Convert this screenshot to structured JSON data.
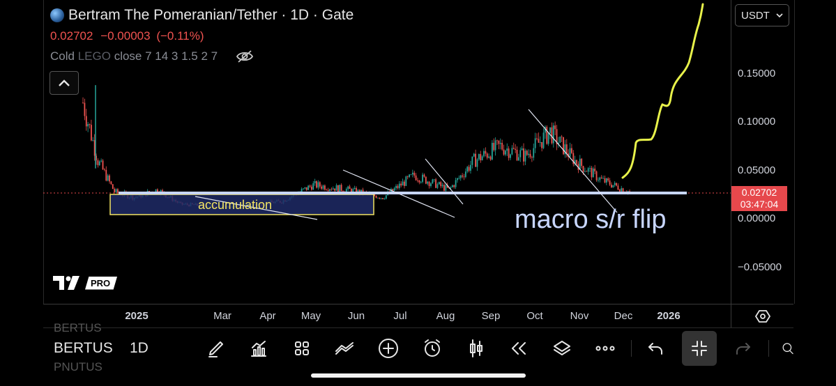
{
  "header": {
    "title": "Bertram The Pomeranian/Tether · 1D · Gate",
    "last_price": "0.02702",
    "change": "−0.00003",
    "change_pct": "(−0.11%)",
    "indicator_label": "Cold",
    "indicator_name": "LEGO",
    "indicator_params": "close 7 14 3 1.5 2 7",
    "coin_icon": "coin-icon",
    "hide_icon": "eye-off-icon",
    "collapse_icon": "chevron-up-icon"
  },
  "currency_select": {
    "value": "USDT",
    "icon": "chevron-down-icon"
  },
  "price_axis": {
    "ticks": [
      "0.15000",
      "0.10000",
      "0.05000",
      "0.00000",
      "−0.05000"
    ],
    "current_price": "0.02702",
    "countdown": "03:47:04",
    "tag_color": "#e6484c"
  },
  "time_axis": {
    "ticks": [
      "2025",
      "Mar",
      "Apr",
      "May",
      "Jun",
      "Jul",
      "Aug",
      "Sep",
      "Oct",
      "Nov",
      "Dec",
      "2026"
    ],
    "settings_icon": "hexagon-settings-icon"
  },
  "annotations": {
    "box_label": "accumulation",
    "flip_label": "macro s/r flip"
  },
  "watermark": {
    "logo": "tradingview-logo",
    "badge": "PRO"
  },
  "bottom_toolbar": {
    "symbol": "BERTUS",
    "symbol_above": "BERTUS",
    "symbol_below": "PNUTUS",
    "interval": "1D",
    "tools": [
      "brush-icon",
      "indicators-icon",
      "layouts-icon",
      "drawing-tools-icon",
      "add-icon",
      "alert-icon",
      "candles-icon",
      "replay-icon",
      "layers-icon",
      "more-icon",
      "undo-icon",
      "fullscreen-exit-icon",
      "redo-icon",
      "search-icon"
    ]
  },
  "chart_data": {
    "type": "candlestick",
    "symbol": "Bertram The Pomeranian/Tether",
    "interval": "1D",
    "exchange": "Gate",
    "ylim": [
      -0.075,
      0.22
    ],
    "x_ticks": [
      "2025",
      "Mar",
      "Apr",
      "May",
      "Jun",
      "Jul",
      "Aug",
      "Sep",
      "Oct",
      "Nov",
      "Dec",
      "2026"
    ],
    "y_ticks": [
      0.15,
      0.1,
      0.05,
      0.0,
      -0.05
    ],
    "approx_close_path": [
      [
        "2025-01-01",
        0.12
      ],
      [
        "2025-01-10",
        0.06
      ],
      [
        "2025-01-20",
        0.028
      ],
      [
        "2025-02-01",
        0.022
      ],
      [
        "2025-02-15",
        0.03
      ],
      [
        "2025-03-01",
        0.015
      ],
      [
        "2025-04-01",
        0.012
      ],
      [
        "2025-05-01",
        0.018
      ],
      [
        "2025-05-20",
        0.035
      ],
      [
        "2025-06-10",
        0.03
      ],
      [
        "2025-07-01",
        0.022
      ],
      [
        "2025-07-20",
        0.045
      ],
      [
        "2025-08-10",
        0.03
      ],
      [
        "2025-08-25",
        0.06
      ],
      [
        "2025-09-10",
        0.075
      ],
      [
        "2025-09-25",
        0.065
      ],
      [
        "2025-10-10",
        0.09
      ],
      [
        "2025-10-25",
        0.06
      ],
      [
        "2025-11-10",
        0.04
      ],
      [
        "2025-11-28",
        0.027
      ]
    ],
    "current_price": 0.02702,
    "support_level": 0.027
  }
}
